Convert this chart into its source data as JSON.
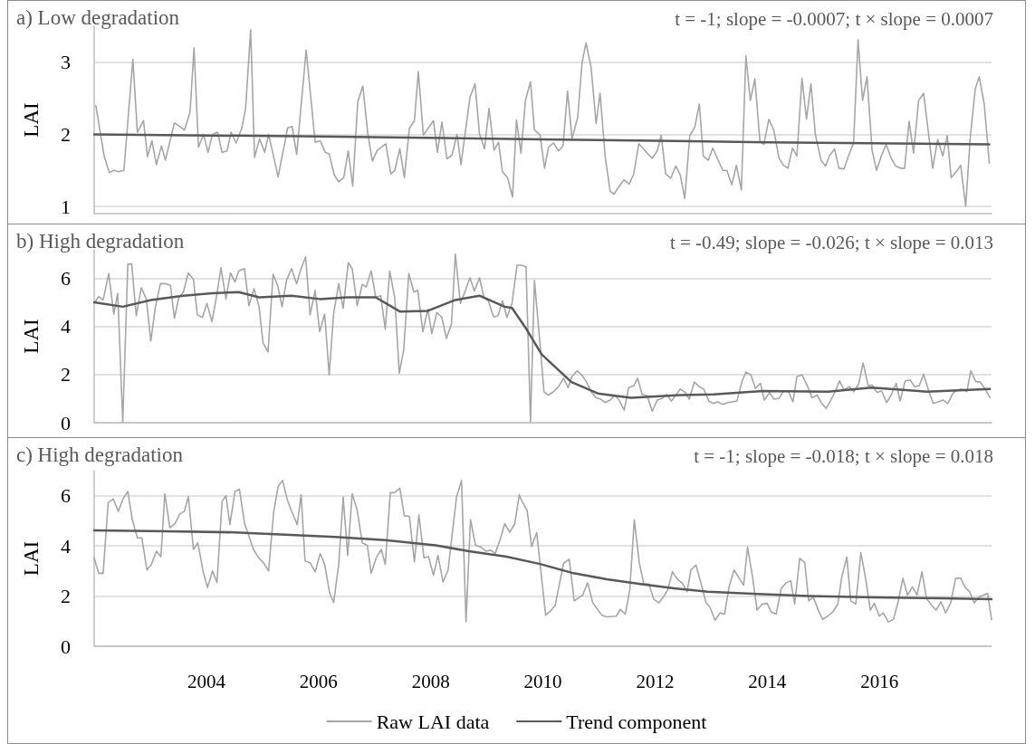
{
  "chart_data": [
    {
      "type": "line",
      "title": "a) Low degradation",
      "annotations": [
        "t = -1; slope = -0.0007; t × slope = 0.0007"
      ],
      "ylabel": "LAI",
      "xlim": [
        2002,
        2018
      ],
      "ylim": [
        0.9,
        3.5
      ],
      "yticks": [
        1,
        2,
        3
      ],
      "grid": "y",
      "legend": false,
      "tick_labels": "y",
      "marker": "none",
      "series": [
        {
          "color": "#a6a6a6",
          "x": [
            2002.03,
            2002.18,
            2002.27,
            2002.35,
            2002.44,
            2002.53,
            2002.69,
            2002.77,
            2002.88,
            2002.95,
            2003.03,
            2003.11,
            2003.2,
            2003.27,
            2003.43,
            2003.61,
            2003.71,
            2003.78,
            2003.86,
            2003.95,
            2004.03,
            2004.11,
            2004.2,
            2004.28,
            2004.37,
            2004.44,
            2004.53,
            2004.63,
            2004.7,
            2004.79,
            2004.86,
            2004.95,
            2005.04,
            2005.11,
            2005.28,
            2005.45,
            2005.53,
            2005.61,
            2005.78,
            2005.94,
            2006.03,
            2006.12,
            2006.19,
            2006.28,
            2006.36,
            2006.45,
            2006.53,
            2006.61,
            2006.7,
            2006.79,
            2006.88,
            2006.96,
            2007.05,
            2007.2,
            2007.29,
            2007.36,
            2007.45,
            2007.53,
            2007.62,
            2007.71,
            2007.78,
            2007.87,
            2008.05,
            2008.12,
            2008.2,
            2008.29,
            2008.38,
            2008.47,
            2008.54,
            2008.7,
            2008.79,
            2008.87,
            2008.96,
            2009.04,
            2009.13,
            2009.21,
            2009.28,
            2009.37,
            2009.46,
            2009.53,
            2009.61,
            2009.69,
            2009.78,
            2009.85,
            2009.95,
            2010.03,
            2010.1,
            2010.19,
            2010.28,
            2010.36,
            2010.44,
            2010.52,
            2010.62,
            2010.7,
            2010.77,
            2010.86,
            2010.95,
            2011.02,
            2011.11,
            2011.2,
            2011.27,
            2011.36,
            2011.45,
            2011.54,
            2011.62,
            2011.71,
            2011.86,
            2011.95,
            2012.04,
            2012.11,
            2012.19,
            2012.28,
            2012.37,
            2012.45,
            2012.53,
            2012.62,
            2012.71,
            2012.79,
            2012.86,
            2012.95,
            2013.03,
            2013.12,
            2013.21,
            2013.28,
            2013.37,
            2013.45,
            2013.54,
            2013.62,
            2013.7,
            2013.78,
            2013.87,
            2013.94,
            2014.03,
            2014.12,
            2014.21,
            2014.29,
            2014.37,
            2014.45,
            2014.53,
            2014.62,
            2014.7,
            2014.78,
            2014.86,
            2014.96,
            2015.04,
            2015.11,
            2015.2,
            2015.28,
            2015.37,
            2015.45,
            2015.54,
            2015.62,
            2015.7,
            2015.78,
            2015.87,
            2015.95,
            2016.04,
            2016.12,
            2016.21,
            2016.29,
            2016.38,
            2016.45,
            2016.53,
            2016.61,
            2016.7,
            2016.79,
            2016.87,
            2016.95,
            2017.04,
            2017.13,
            2017.21,
            2017.28,
            2017.37,
            2017.45,
            2017.54,
            2017.62,
            2017.71,
            2017.78,
            2017.87,
            2017.96
          ],
          "values": [
            2.4,
            1.69,
            1.47,
            1.5,
            1.48,
            1.5,
            3.04,
            2.03,
            2.19,
            1.69,
            1.91,
            1.58,
            1.84,
            1.64,
            2.16,
            2.06,
            2.31,
            3.2,
            1.82,
            2.0,
            1.75,
            2.0,
            2.03,
            1.75,
            1.77,
            2.03,
            1.88,
            2.08,
            2.36,
            3.45,
            1.68,
            1.94,
            1.75,
            2.0,
            1.41,
            2.09,
            2.11,
            1.72,
            3.17,
            1.89,
            1.91,
            1.75,
            1.73,
            1.44,
            1.34,
            1.4,
            1.77,
            1.28,
            2.45,
            2.67,
            2.0,
            1.63,
            1.78,
            1.87,
            1.45,
            1.5,
            1.8,
            1.4,
            2.08,
            2.19,
            2.87,
            1.99,
            2.19,
            1.75,
            2.17,
            1.66,
            1.71,
            2.0,
            1.58,
            2.51,
            2.7,
            2.01,
            1.8,
            2.36,
            1.78,
            1.89,
            1.48,
            1.4,
            1.13,
            2.2,
            1.74,
            2.47,
            2.73,
            2.06,
            1.99,
            1.53,
            1.82,
            1.88,
            1.77,
            1.84,
            2.6,
            1.94,
            2.23,
            3.0,
            3.27,
            2.93,
            2.15,
            2.57,
            1.7,
            1.21,
            1.17,
            1.28,
            1.37,
            1.31,
            1.45,
            1.87,
            1.74,
            1.67,
            1.77,
            1.99,
            1.45,
            1.39,
            1.56,
            1.44,
            1.11,
            1.98,
            2.1,
            2.42,
            1.7,
            1.64,
            1.81,
            1.65,
            1.5,
            1.5,
            1.3,
            1.57,
            1.23,
            3.09,
            2.47,
            2.77,
            1.91,
            1.86,
            2.21,
            2.05,
            1.67,
            1.57,
            1.53,
            1.81,
            1.7,
            2.78,
            2.21,
            2.7,
            1.99,
            1.64,
            1.56,
            1.7,
            1.8,
            1.53,
            1.52,
            1.7,
            1.88,
            3.31,
            2.47,
            2.8,
            1.78,
            1.5,
            1.71,
            1.86,
            1.67,
            1.56,
            1.53,
            1.53,
            2.18,
            1.74,
            2.47,
            2.57,
            2.05,
            1.53,
            1.93,
            1.7,
            1.98,
            1.4,
            1.48,
            1.57,
            1.0,
            1.95,
            2.63,
            2.8,
            2.42,
            1.6
          ]
        },
        {
          "color": "#595959",
          "x": [
            2002.0,
            2006.0,
            2010.0,
            2014.0,
            2017.96
          ],
          "values": [
            2.0,
            1.97,
            1.93,
            1.89,
            1.86
          ]
        }
      ]
    },
    {
      "type": "line",
      "title": "b) High degradation",
      "annotations": [
        "t = -0.49; slope = -0.026; t × slope = 0.013"
      ],
      "ylabel": "LAI",
      "xlim": [
        2002,
        2018
      ],
      "ylim": [
        0,
        7.2
      ],
      "yticks": [
        0,
        2,
        4,
        6
      ],
      "grid": "y",
      "legend": false,
      "tick_labels": "y",
      "marker": "none",
      "series": [
        {
          "color": "#a6a6a6",
          "x": [
            2002.01,
            2002.08,
            2002.16,
            2002.26,
            2002.35,
            2002.42,
            2002.51,
            2002.6,
            2002.67,
            2002.75,
            2002.84,
            2002.93,
            2003.01,
            2003.09,
            2003.18,
            2003.27,
            2003.36,
            2003.43,
            2003.51,
            2003.59,
            2003.68,
            2003.77,
            2003.84,
            2003.93,
            2004.01,
            2004.1,
            2004.19,
            2004.26,
            2004.35,
            2004.43,
            2004.51,
            2004.58,
            2004.68,
            2004.76,
            2004.85,
            2004.94,
            2005.01,
            2005.1,
            2005.19,
            2005.27,
            2005.35,
            2005.43,
            2005.52,
            2005.61,
            2005.68,
            2005.77,
            2005.85,
            2005.94,
            2006.02,
            2006.11,
            2006.19,
            2006.27,
            2006.36,
            2006.44,
            2006.53,
            2006.6,
            2006.69,
            2006.78,
            2006.85,
            2006.94,
            2007.02,
            2007.11,
            2007.19,
            2007.27,
            2007.36,
            2007.44,
            2007.52,
            2007.61,
            2007.7,
            2007.77,
            2007.86,
            2007.95,
            2008.02,
            2008.11,
            2008.2,
            2008.28,
            2008.37,
            2008.44,
            2008.53,
            2008.62,
            2008.7,
            2008.78,
            2008.87,
            2008.95,
            2009.03,
            2009.12,
            2009.2,
            2009.28,
            2009.36,
            2009.45,
            2009.54,
            2009.62,
            2009.7,
            2009.78,
            2009.85,
            2009.94,
            2010.02,
            2010.1,
            2010.19,
            2010.28,
            2010.37,
            2010.45,
            2010.52,
            2010.61,
            2010.7,
            2010.78,
            2010.86,
            2010.95,
            2011.03,
            2011.11,
            2011.2,
            2011.28,
            2011.36,
            2011.45,
            2011.53,
            2011.62,
            2011.69,
            2011.77,
            2011.86,
            2011.95,
            2012.04,
            2012.13,
            2012.21,
            2012.29,
            2012.37,
            2012.45,
            2012.54,
            2012.61,
            2012.7,
            2012.79,
            2012.87,
            2012.96,
            2013.04,
            2013.12,
            2013.21,
            2013.3,
            2013.38,
            2013.46,
            2013.55,
            2013.62,
            2013.71,
            2013.79,
            2013.88,
            2013.95,
            2014.04,
            2014.12,
            2014.21,
            2014.29,
            2014.38,
            2014.46,
            2014.53,
            2014.62,
            2014.71,
            2014.8,
            2014.89,
            2014.96,
            2015.05,
            2015.12,
            2015.21,
            2015.29,
            2015.37,
            2015.46,
            2015.54,
            2015.63,
            2015.71,
            2015.8,
            2015.87,
            2015.96,
            2016.04,
            2016.13,
            2016.21,
            2016.3,
            2016.37,
            2016.46,
            2016.55,
            2016.63,
            2016.71,
            2016.79,
            2016.88,
            2016.96,
            2017.05,
            2017.14,
            2017.22,
            2017.31,
            2017.39,
            2017.47,
            2017.56,
            2017.63,
            2017.72,
            2017.8,
            2017.89,
            2017.97
          ],
          "values": [
            5.01,
            5.25,
            5.11,
            6.21,
            4.52,
            5.39,
            0.03,
            6.6,
            6.6,
            4.45,
            5.62,
            5.15,
            3.4,
            4.8,
            5.79,
            5.79,
            5.72,
            4.35,
            5.22,
            5.44,
            6.24,
            5.96,
            4.49,
            4.38,
            4.97,
            4.21,
            5.37,
            6.46,
            5.15,
            6.24,
            5.86,
            6.32,
            6.42,
            4.87,
            5.58,
            4.83,
            3.33,
            2.95,
            6.18,
            5.72,
            4.83,
            5.93,
            6.42,
            5.79,
            6.35,
            6.91,
            4.49,
            5.51,
            3.79,
            4.52,
            1.99,
            4.55,
            5.79,
            4.76,
            6.66,
            6.42,
            4.87,
            5.76,
            5.65,
            6.32,
            5.22,
            5.29,
            3.89,
            6.32,
            5.2,
            2.06,
            3.05,
            6.21,
            5.44,
            5.51,
            3.79,
            4.73,
            3.71,
            4.59,
            4.38,
            3.51,
            4.1,
            7.02,
            4.97,
            5.51,
            6.04,
            5.48,
            6.04,
            5.22,
            5.06,
            4.41,
            4.45,
            5.08,
            4.38,
            4.97,
            6.56,
            6.56,
            6.49,
            0.03,
            5.93,
            3.54,
            1.29,
            1.15,
            1.29,
            1.5,
            1.85,
            1.46,
            1.92,
            2.16,
            1.97,
            1.69,
            1.29,
            1.04,
            0.98,
            0.84,
            0.94,
            1.15,
            0.94,
            0.52,
            1.46,
            1.54,
            1.85,
            1.18,
            1.12,
            0.48,
            0.94,
            1.01,
            1.18,
            0.9,
            1.15,
            1.4,
            1.26,
            0.98,
            1.69,
            1.5,
            1.4,
            0.9,
            0.8,
            0.87,
            0.76,
            0.84,
            0.87,
            0.9,
            1.71,
            2.11,
            1.99,
            1.43,
            1.64,
            0.94,
            1.26,
            0.98,
            1.01,
            1.32,
            1.29,
            0.87,
            1.92,
            1.99,
            1.57,
            1.04,
            1.15,
            0.84,
            0.59,
            0.87,
            1.29,
            1.74,
            1.36,
            1.5,
            1.29,
            1.6,
            2.49,
            1.54,
            1.57,
            1.26,
            1.32,
            0.84,
            1.15,
            1.64,
            0.9,
            1.74,
            1.78,
            1.5,
            1.54,
            2.02,
            1.32,
            0.8,
            0.87,
            0.94,
            0.8,
            1.22,
            1.36,
            1.4,
            1.29,
            2.16,
            1.71,
            1.69,
            1.4,
            1.04
          ]
        },
        {
          "color": "#595959",
          "x": [
            2002.0,
            2002.51,
            2003.01,
            2003.59,
            2004.1,
            2004.58,
            2004.94,
            2005.52,
            2006.02,
            2006.51,
            2007.02,
            2007.45,
            2007.95,
            2008.44,
            2008.87,
            2009.32,
            2009.45,
            2009.69,
            2009.98,
            2010.51,
            2010.98,
            2011.57,
            2012.45,
            2013.04,
            2013.92,
            2015.09,
            2015.86,
            2016.85,
            2017.97
          ],
          "values": [
            5.01,
            4.83,
            5.11,
            5.29,
            5.39,
            5.44,
            5.22,
            5.29,
            5.15,
            5.22,
            5.22,
            4.63,
            4.66,
            5.11,
            5.29,
            4.83,
            4.78,
            3.96,
            2.84,
            1.69,
            1.22,
            1.04,
            1.15,
            1.18,
            1.32,
            1.29,
            1.46,
            1.29,
            1.4
          ]
        }
      ]
    },
    {
      "type": "line",
      "title": "c) High degradation",
      "annotations": [
        "t = -1; slope = -0.018; t × slope = 0.018"
      ],
      "ylabel": "LAI",
      "xlim": [
        2002,
        2018
      ],
      "xticks": [
        2004,
        2006,
        2008,
        2010,
        2012,
        2014,
        2016
      ],
      "ylim": [
        0,
        7
      ],
      "yticks": [
        0,
        2,
        4,
        6
      ],
      "grid": "y",
      "legend": "bottom",
      "marker": "none",
      "series": [
        {
          "name": "Raw LAI data",
          "color": "#a6a6a6",
          "x": [
            2002.0,
            2002.08,
            2002.16,
            2002.25,
            2002.34,
            2002.43,
            2002.52,
            2002.6,
            2002.68,
            2002.77,
            2002.85,
            2002.94,
            2003.02,
            2003.11,
            2003.19,
            2003.26,
            2003.35,
            2003.44,
            2003.53,
            2003.61,
            2003.68,
            2003.77,
            2003.85,
            2003.94,
            2004.02,
            2004.11,
            2004.19,
            2004.28,
            2004.35,
            2004.42,
            2004.51,
            2004.59,
            2004.68,
            2004.84,
            2004.93,
            2005.02,
            2005.11,
            2005.2,
            2005.28,
            2005.36,
            2005.44,
            2005.51,
            2005.62,
            2005.69,
            2005.76,
            2005.85,
            2005.94,
            2006.03,
            2006.11,
            2006.2,
            2006.27,
            2006.36,
            2006.44,
            2006.52,
            2006.6,
            2006.69,
            2006.78,
            2006.87,
            2006.94,
            2007.03,
            2007.12,
            2007.19,
            2007.28,
            2007.36,
            2007.45,
            2007.53,
            2007.62,
            2007.71,
            2007.79,
            2007.88,
            2007.96,
            2008.05,
            2008.13,
            2008.22,
            2008.31,
            2008.38,
            2008.46,
            2008.55,
            2008.63,
            2008.71,
            2008.8,
            2008.89,
            2008.98,
            2009.07,
            2009.15,
            2009.24,
            2009.32,
            2009.41,
            2009.5,
            2009.58,
            2009.62,
            2009.72,
            2009.8,
            2009.89,
            2010.05,
            2010.14,
            2010.22,
            2010.37,
            2010.47,
            2010.56,
            2010.71,
            2010.8,
            2010.89,
            2011.05,
            2011.14,
            2011.31,
            2011.38,
            2011.47,
            2011.55,
            2011.63,
            2011.72,
            2011.8,
            2011.89,
            2011.98,
            2012.07,
            2012.16,
            2012.23,
            2012.31,
            2012.4,
            2012.49,
            2012.57,
            2012.64,
            2012.73,
            2012.82,
            2012.91,
            2012.98,
            2013.07,
            2013.16,
            2013.24,
            2013.32,
            2013.41,
            2013.5,
            2013.58,
            2013.65,
            2013.74,
            2013.82,
            2013.91,
            2014.0,
            2014.07,
            2014.16,
            2014.25,
            2014.34,
            2014.42,
            2014.49,
            2014.58,
            2014.67,
            2014.74,
            2014.82,
            2014.91,
            2014.99,
            2015.08,
            2015.17,
            2015.26,
            2015.33,
            2015.42,
            2015.49,
            2015.58,
            2015.67,
            2015.75,
            2015.84,
            2015.91,
            2016.0,
            2016.07,
            2016.16,
            2016.25,
            2016.33,
            2016.42,
            2016.5,
            2016.59,
            2016.67,
            2016.76,
            2016.84,
            2016.93,
            2017.01,
            2017.1,
            2017.18,
            2017.27,
            2017.36,
            2017.45,
            2017.53,
            2017.61,
            2017.69,
            2017.78,
            2017.93,
            2018.0
          ],
          "values": [
            3.53,
            2.91,
            2.91,
            5.73,
            5.87,
            5.38,
            5.9,
            6.17,
            5.05,
            4.32,
            4.32,
            3.04,
            3.26,
            3.79,
            3.57,
            6.08,
            4.72,
            4.89,
            5.28,
            5.38,
            5.97,
            3.86,
            4.12,
            3.0,
            2.34,
            3.0,
            2.54,
            5.77,
            6.0,
            4.85,
            6.17,
            6.26,
            4.91,
            3.86,
            3.53,
            3.33,
            3.0,
            5.34,
            6.37,
            6.61,
            5.87,
            5.44,
            4.85,
            6.04,
            3.4,
            3.33,
            2.96,
            3.7,
            3.26,
            2.11,
            1.74,
            3.26,
            5.94,
            3.62,
            6.08,
            5.42,
            4.12,
            4.02,
            2.91,
            3.53,
            3.86,
            3.26,
            6.12,
            6.13,
            6.3,
            5.2,
            5.18,
            3.36,
            5.24,
            3.53,
            3.57,
            2.83,
            3.62,
            2.56,
            3.04,
            4.39,
            5.94,
            6.61,
            0.98,
            5.05,
            4.02,
            3.96,
            3.79,
            3.83,
            3.7,
            4.26,
            4.89,
            4.54,
            4.89,
            6.04,
            5.81,
            5.41,
            3.97,
            4.53,
            1.24,
            1.41,
            1.64,
            3.31,
            3.47,
            1.81,
            2.04,
            2.53,
            1.73,
            1.24,
            1.17,
            1.2,
            1.47,
            1.28,
            2.24,
            5.04,
            3.33,
            2.48,
            2.48,
            1.87,
            1.73,
            2.0,
            2.27,
            2.97,
            2.67,
            2.51,
            2.17,
            3.04,
            3.24,
            2.51,
            1.73,
            1.55,
            1.04,
            1.33,
            1.28,
            2.37,
            3.04,
            2.71,
            2.44,
            3.95,
            2.75,
            1.44,
            1.68,
            1.71,
            1.37,
            1.28,
            2.31,
            2.53,
            2.61,
            1.68,
            3.51,
            3.33,
            1.81,
            1.97,
            1.44,
            1.07,
            1.2,
            1.37,
            1.68,
            2.77,
            3.55,
            1.81,
            1.68,
            3.73,
            2.77,
            1.44,
            1.71,
            1.2,
            1.33,
            0.97,
            1.07,
            1.73,
            2.71,
            2.04,
            2.37,
            2.04,
            2.97,
            1.91,
            1.64,
            1.44,
            1.77,
            1.33,
            1.71,
            2.71,
            2.71,
            2.35,
            2.17,
            1.73,
            1.97,
            2.11,
            1.07
          ]
        },
        {
          "name": "Trend component",
          "color": "#595959",
          "x": [
            2002.0,
            2003.32,
            2004.51,
            2005.41,
            2006.3,
            2007.19,
            2008.09,
            2008.68,
            2009.35,
            2009.95,
            2010.55,
            2011.14,
            2011.74,
            2012.34,
            2012.94,
            2013.83,
            2014.73,
            2015.93,
            2017.12,
            2018.0
          ],
          "values": [
            4.62,
            4.58,
            4.54,
            4.45,
            4.36,
            4.23,
            4.02,
            3.79,
            3.57,
            3.28,
            2.91,
            2.67,
            2.48,
            2.31,
            2.17,
            2.08,
            2.0,
            1.95,
            1.91,
            1.88
          ]
        }
      ]
    }
  ]
}
